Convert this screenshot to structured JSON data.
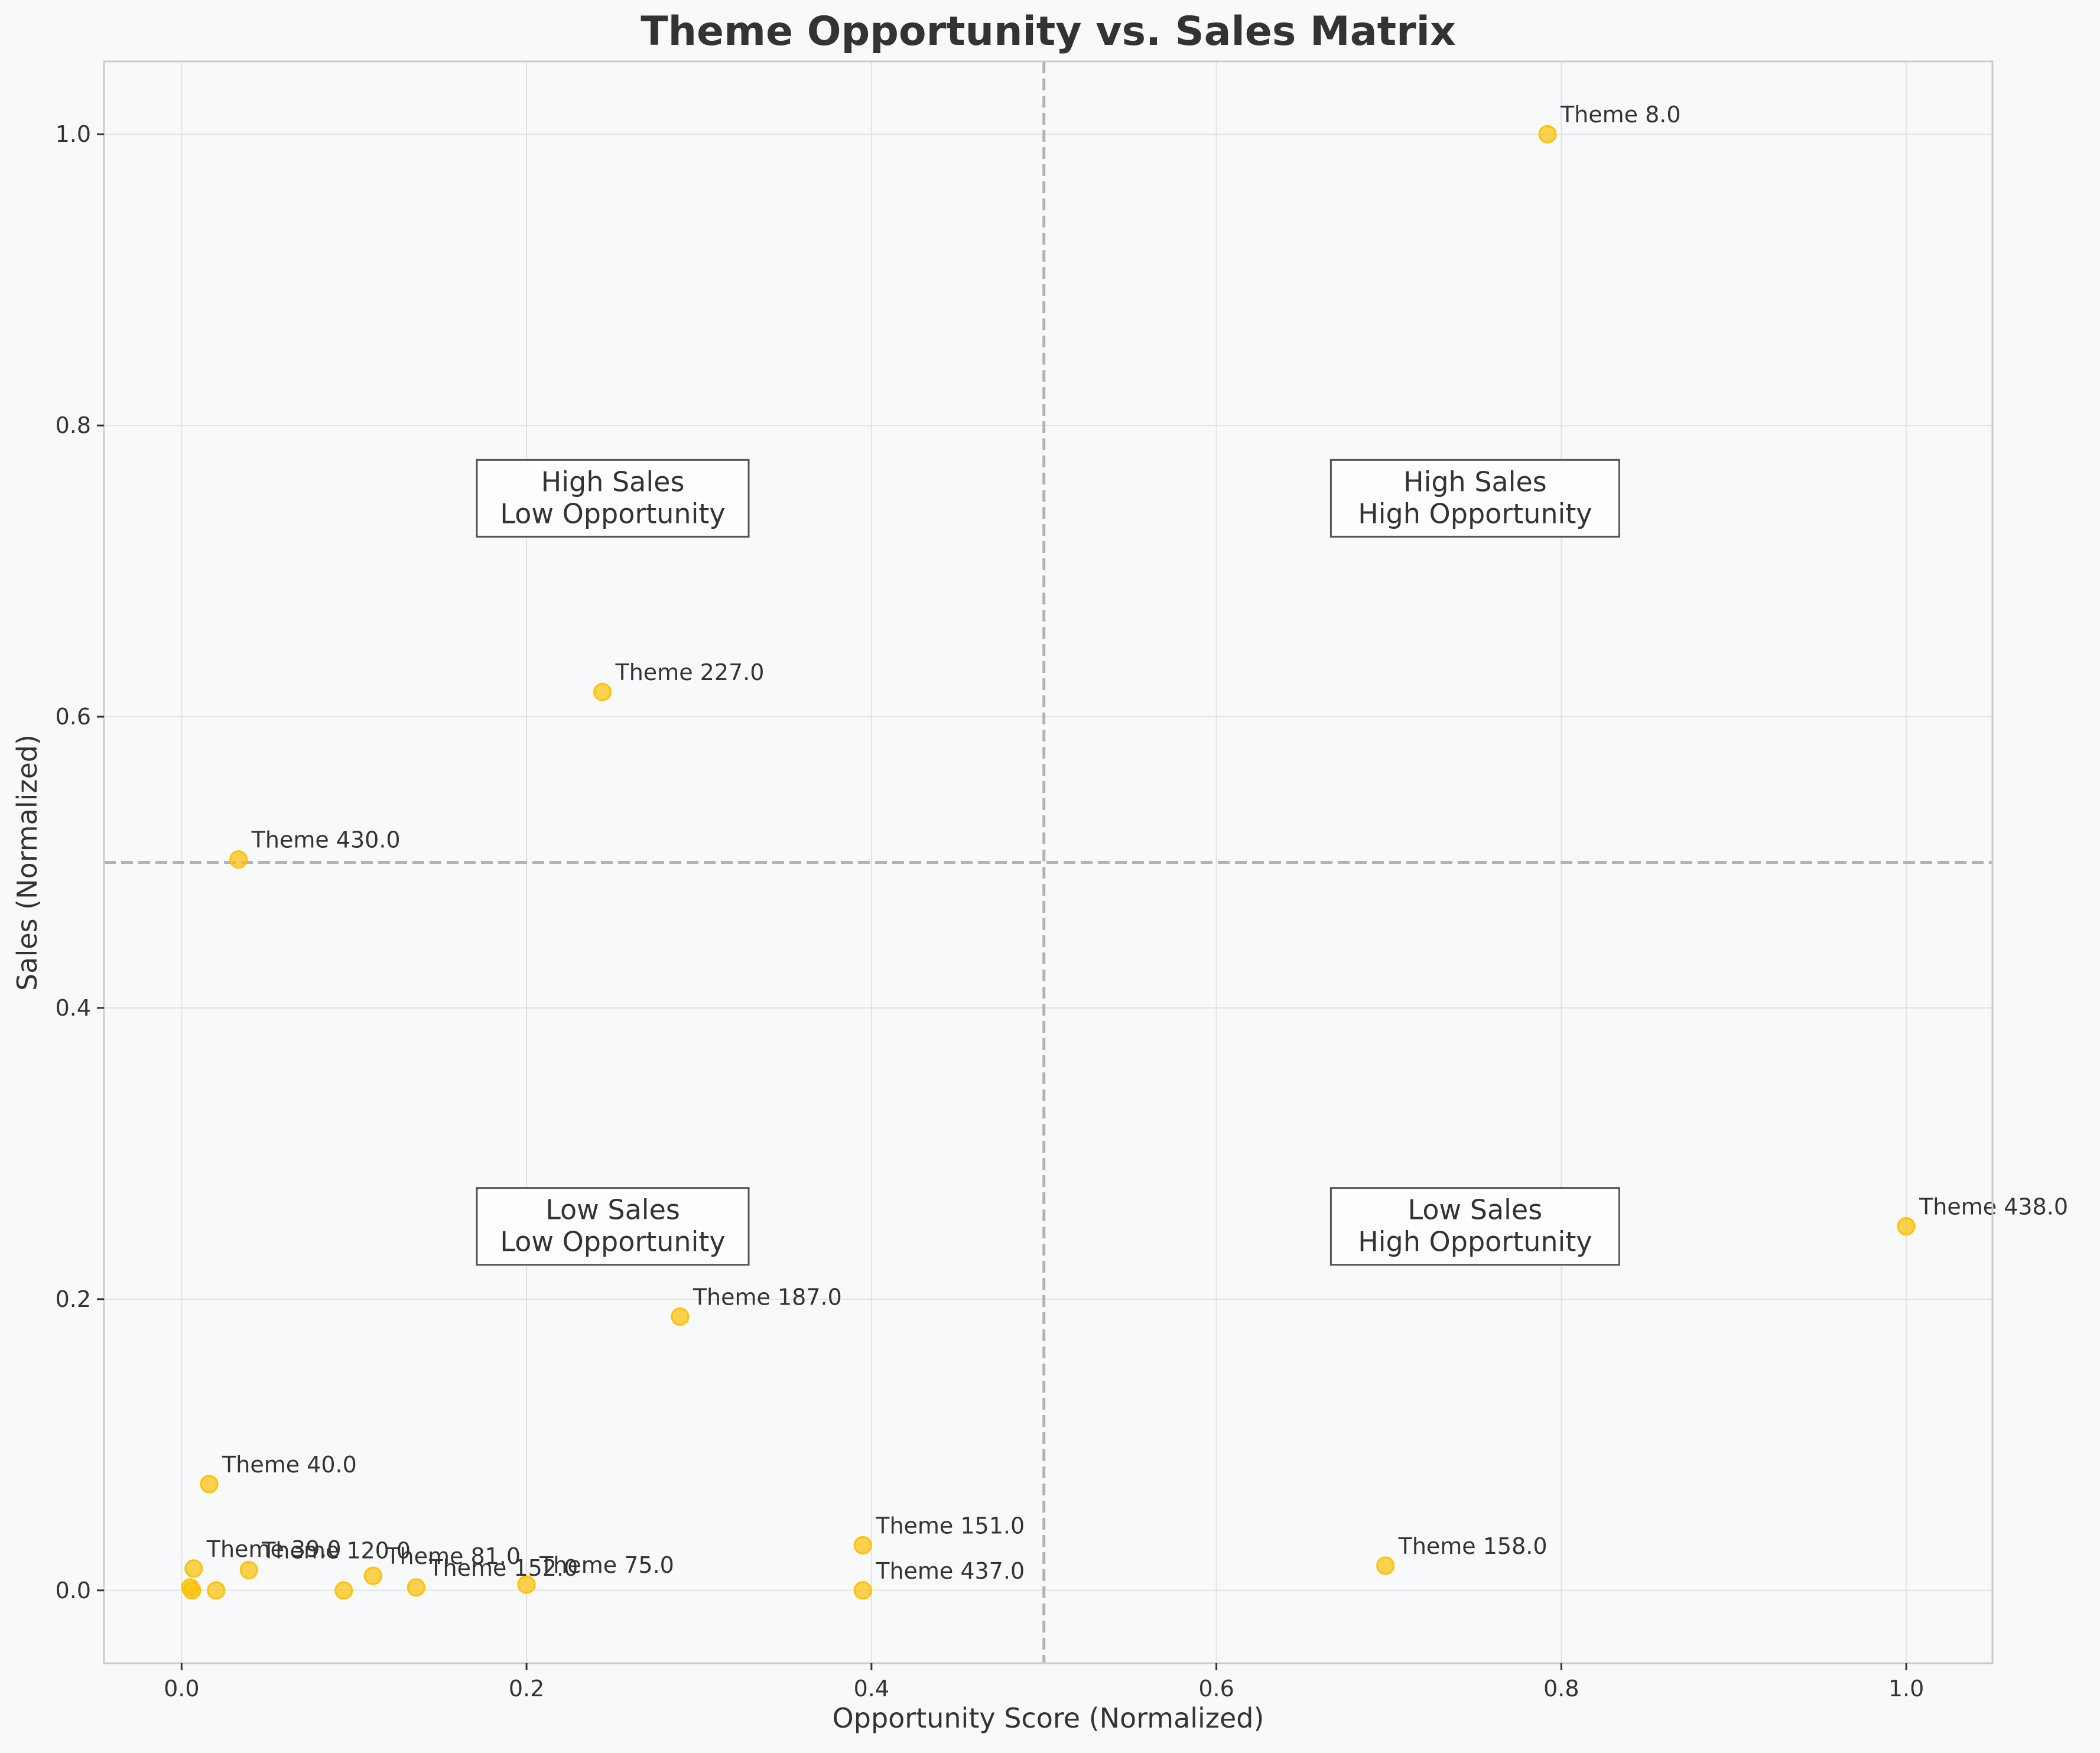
{
  "chart_data": {
    "type": "scatter",
    "title": "Theme Opportunity vs. Sales Matrix",
    "xlabel": "Opportunity Score (Normalized)",
    "ylabel": "Sales (Normalized)",
    "xlim": [
      -0.045,
      1.05
    ],
    "ylim": [
      -0.05,
      1.05
    ],
    "xticks": [
      0.0,
      0.2,
      0.4,
      0.6,
      0.8,
      1.0
    ],
    "yticks": [
      0.0,
      0.2,
      0.4,
      0.6,
      0.8,
      1.0
    ],
    "tick_labels_x": [
      "0.0",
      "0.2",
      "0.4",
      "0.6",
      "0.8",
      "1.0"
    ],
    "tick_labels_y": [
      "0.0",
      "0.2",
      "0.4",
      "0.6",
      "0.8",
      "1.0"
    ],
    "grid": true,
    "reference_lines": {
      "x": 0.5,
      "y": 0.5
    },
    "marker_color": "#ffc107",
    "points": [
      {
        "label": "Theme 8.0",
        "x": 0.792,
        "y": 1.0
      },
      {
        "label": "Theme 227.0",
        "x": 0.244,
        "y": 0.617
      },
      {
        "label": "Theme 430.0",
        "x": 0.033,
        "y": 0.502
      },
      {
        "label": "Theme 438.0",
        "x": 1.0,
        "y": 0.25
      },
      {
        "label": "Theme 187.0",
        "x": 0.289,
        "y": 0.188
      },
      {
        "label": "Theme 40.0",
        "x": 0.016,
        "y": 0.073
      },
      {
        "label": "Theme 151.0",
        "x": 0.395,
        "y": 0.031
      },
      {
        "label": "Theme 158.0",
        "x": 0.698,
        "y": 0.017
      },
      {
        "label": "Theme 39.0",
        "x": 0.007,
        "y": 0.015
      },
      {
        "label": "Theme 120.0",
        "x": 0.039,
        "y": 0.014
      },
      {
        "label": "Theme 81.0",
        "x": 0.111,
        "y": 0.01
      },
      {
        "label": "Theme 152.0",
        "x": 0.136,
        "y": 0.002
      },
      {
        "label": "Theme 75.0",
        "x": 0.2,
        "y": 0.004
      },
      {
        "label": "Theme 437.0",
        "x": 0.395,
        "y": 0.0
      }
    ],
    "unlabeled_points": [
      {
        "x": 0.005,
        "y": 0.002
      },
      {
        "x": 0.006,
        "y": 0.0
      },
      {
        "x": 0.02,
        "y": 0.0
      },
      {
        "x": 0.094,
        "y": 0.0
      }
    ],
    "quadrant_labels": [
      {
        "lines": [
          "High Sales",
          "Low Opportunity"
        ],
        "x": 0.25,
        "y": 0.75
      },
      {
        "lines": [
          "High Sales",
          "High Opportunity"
        ],
        "x": 0.75,
        "y": 0.75
      },
      {
        "lines": [
          "Low Sales",
          "Low Opportunity"
        ],
        "x": 0.25,
        "y": 0.25
      },
      {
        "lines": [
          "Low Sales",
          "High Opportunity"
        ],
        "x": 0.75,
        "y": 0.25
      }
    ]
  }
}
